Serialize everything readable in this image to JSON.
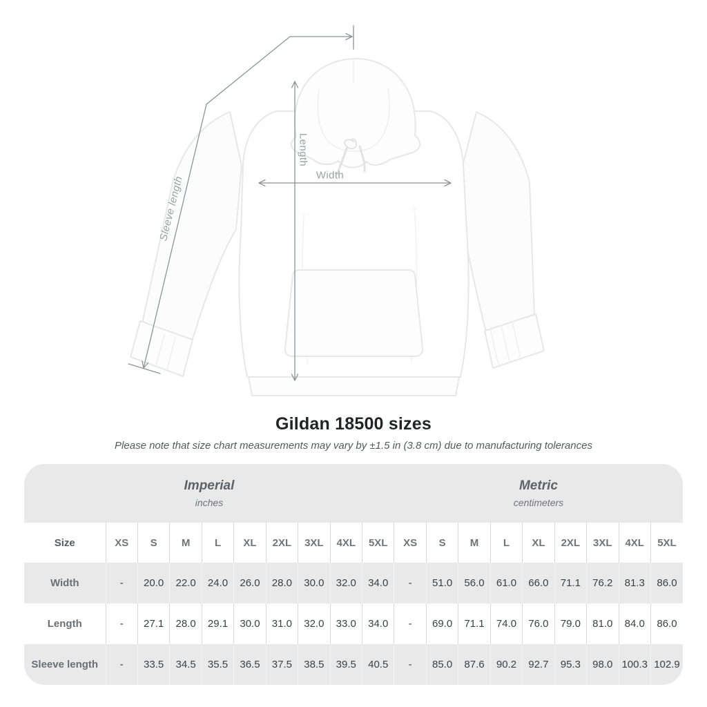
{
  "diagram": {
    "length_label": "Length",
    "width_label": "Width",
    "sleeve_label": "Sleeve length"
  },
  "title": "Gildan 18500 sizes",
  "subtitle": "Please note that size chart measurements may vary by ±1.5 in (3.8 cm) due to manufacturing tolerances",
  "table": {
    "groups": [
      {
        "label": "Imperial",
        "sublabel": "inches"
      },
      {
        "label": "Metric",
        "sublabel": "centimeters"
      }
    ],
    "size_header": "Size",
    "sizes": [
      "XS",
      "S",
      "M",
      "L",
      "XL",
      "2XL",
      "3XL",
      "4XL",
      "5XL"
    ],
    "rows": [
      {
        "label": "Width",
        "imperial": [
          "-",
          "20.0",
          "22.0",
          "24.0",
          "26.0",
          "28.0",
          "30.0",
          "32.0",
          "34.0"
        ],
        "metric": [
          "-",
          "51.0",
          "56.0",
          "61.0",
          "66.0",
          "71.1",
          "76.2",
          "81.3",
          "86.0"
        ]
      },
      {
        "label": "Length",
        "imperial": [
          "-",
          "27.1",
          "28.0",
          "29.1",
          "30.0",
          "31.0",
          "32.0",
          "33.0",
          "34.0"
        ],
        "metric": [
          "-",
          "69.0",
          "71.1",
          "74.0",
          "76.0",
          "79.0",
          "81.0",
          "84.0",
          "86.0"
        ]
      },
      {
        "label": "Sleeve length",
        "imperial": [
          "-",
          "33.5",
          "34.5",
          "35.5",
          "36.5",
          "37.5",
          "38.5",
          "39.5",
          "40.5"
        ],
        "metric": [
          "-",
          "85.0",
          "87.6",
          "90.2",
          "92.7",
          "95.3",
          "98.0",
          "100.3",
          "102.9"
        ]
      }
    ]
  },
  "colors": {
    "stripe_gray": "#e9e9e9",
    "measure_line_gray": "#8d9296",
    "measure_label_gray": "#9aa0a4",
    "value_text": "#3b4044",
    "header_text": "#5c6266",
    "title_text": "#212427"
  }
}
